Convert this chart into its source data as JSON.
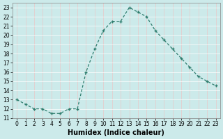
{
  "x": [
    0,
    1,
    2,
    3,
    4,
    5,
    6,
    7,
    8,
    9,
    10,
    11,
    12,
    13,
    14,
    15,
    16,
    17,
    18,
    19,
    20,
    21,
    22,
    23
  ],
  "y": [
    13.0,
    12.5,
    12.0,
    12.0,
    11.5,
    11.5,
    12.0,
    12.0,
    16.0,
    18.5,
    20.5,
    21.5,
    21.5,
    23.0,
    22.5,
    22.0,
    20.5,
    19.5,
    18.5,
    17.5,
    16.5,
    15.5,
    15.0,
    14.5
  ],
  "xlabel": "Humidex (Indice chaleur)",
  "line_color": "#2e7d6e",
  "marker": "+",
  "bg_color": "#cceaea",
  "grid_color": "#e8c8c8",
  "grid_color2": "#ffffff",
  "xlim": [
    -0.5,
    23.5
  ],
  "ylim": [
    11.0,
    23.5
  ],
  "yticks": [
    11,
    12,
    13,
    14,
    15,
    16,
    17,
    18,
    19,
    20,
    21,
    22,
    23
  ],
  "xticks": [
    0,
    1,
    2,
    3,
    4,
    5,
    6,
    7,
    8,
    9,
    10,
    11,
    12,
    13,
    14,
    15,
    16,
    17,
    18,
    19,
    20,
    21,
    22,
    23
  ],
  "tick_fontsize": 5.5,
  "xlabel_fontsize": 7
}
